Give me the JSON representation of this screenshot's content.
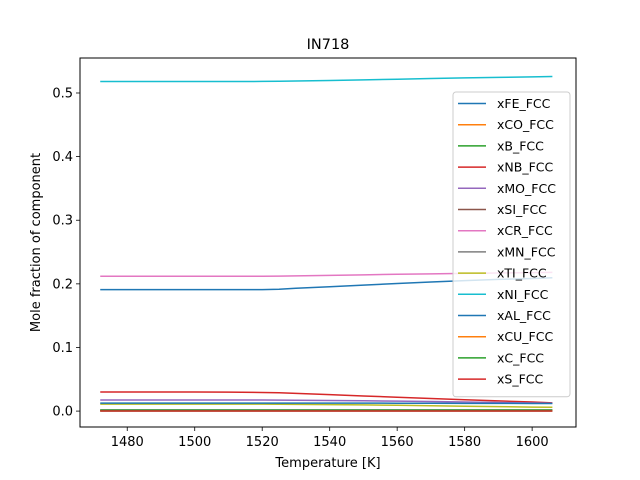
{
  "chart_data": {
    "type": "line",
    "title": "IN718",
    "xlabel": "Temperature [K]",
    "ylabel": "Mole fraction of component",
    "xlim": [
      1466,
      1613
    ],
    "ylim": [
      -0.025,
      0.555
    ],
    "xticks": [
      1480,
      1500,
      1520,
      1540,
      1560,
      1580,
      1600
    ],
    "yticks": [
      0.0,
      0.1,
      0.2,
      0.3,
      0.4,
      0.5
    ],
    "grid": false,
    "legend_position": "right",
    "x": [
      1472,
      1480,
      1490,
      1500,
      1510,
      1520,
      1525,
      1530,
      1540,
      1550,
      1560,
      1570,
      1580,
      1590,
      1600,
      1606
    ],
    "series": [
      {
        "name": "xFE_FCC",
        "color": "#1f77b4",
        "values": [
          0.191,
          0.191,
          0.191,
          0.191,
          0.191,
          0.191,
          0.1915,
          0.193,
          0.1955,
          0.198,
          0.2005,
          0.203,
          0.205,
          0.207,
          0.2085,
          0.2095
        ]
      },
      {
        "name": "xCO_FCC",
        "color": "#ff7f0e",
        "values": [
          0.001,
          0.001,
          0.001,
          0.001,
          0.001,
          0.001,
          0.001,
          0.001,
          0.001,
          0.001,
          0.001,
          0.001,
          0.001,
          0.001,
          0.001,
          0.001
        ]
      },
      {
        "name": "xB_FCC",
        "color": "#2ca02c",
        "values": [
          0.0002,
          0.0002,
          0.0002,
          0.0002,
          0.0002,
          0.0002,
          0.0002,
          0.0002,
          0.0002,
          0.0002,
          0.0002,
          0.0002,
          0.0002,
          0.0002,
          0.0002,
          0.0002
        ]
      },
      {
        "name": "xNB_FCC",
        "color": "#d62728",
        "values": [
          0.03,
          0.03,
          0.03,
          0.03,
          0.0298,
          0.0293,
          0.0288,
          0.0278,
          0.0258,
          0.0238,
          0.0218,
          0.0198,
          0.0178,
          0.016,
          0.0142,
          0.013
        ]
      },
      {
        "name": "xMO_FCC",
        "color": "#9467bd",
        "values": [
          0.0175,
          0.0175,
          0.0175,
          0.0175,
          0.0175,
          0.0174,
          0.0173,
          0.0171,
          0.0167,
          0.0162,
          0.0156,
          0.015,
          0.0143,
          0.0136,
          0.0128,
          0.0123
        ]
      },
      {
        "name": "xSI_FCC",
        "color": "#8c564b",
        "values": [
          0.001,
          0.001,
          0.001,
          0.001,
          0.001,
          0.001,
          0.001,
          0.001,
          0.001,
          0.001,
          0.001,
          0.001,
          0.001,
          0.001,
          0.001,
          0.001
        ]
      },
      {
        "name": "xCR_FCC",
        "color": "#e377c2",
        "values": [
          0.212,
          0.212,
          0.212,
          0.212,
          0.212,
          0.212,
          0.2122,
          0.2126,
          0.2134,
          0.2142,
          0.215,
          0.2157,
          0.2164,
          0.217,
          0.2176,
          0.218
        ]
      },
      {
        "name": "xMN_FCC",
        "color": "#7f7f7f",
        "values": [
          0.002,
          0.002,
          0.002,
          0.002,
          0.002,
          0.002,
          0.002,
          0.002,
          0.002,
          0.002,
          0.002,
          0.002,
          0.002,
          0.002,
          0.002,
          0.002
        ]
      },
      {
        "name": "xTI_FCC",
        "color": "#bcbd22",
        "values": [
          0.011,
          0.011,
          0.011,
          0.011,
          0.011,
          0.0109,
          0.0108,
          0.0106,
          0.0102,
          0.0097,
          0.0091,
          0.0084,
          0.0077,
          0.007,
          0.0063,
          0.006
        ]
      },
      {
        "name": "xNI_FCC",
        "color": "#17becf",
        "values": [
          0.518,
          0.518,
          0.518,
          0.518,
          0.518,
          0.5182,
          0.5184,
          0.5188,
          0.5196,
          0.5206,
          0.5217,
          0.5228,
          0.5237,
          0.5245,
          0.5253,
          0.526
        ]
      },
      {
        "name": "xAL_FCC",
        "color": "#1f77b4",
        "values": [
          0.0125,
          0.0125,
          0.0125,
          0.0125,
          0.0125,
          0.0125,
          0.0125,
          0.0125,
          0.0125,
          0.0125,
          0.0124,
          0.0123,
          0.0122,
          0.0121,
          0.012,
          0.0119
        ]
      },
      {
        "name": "xCU_FCC",
        "color": "#ff7f0e",
        "values": [
          0.0005,
          0.0005,
          0.0005,
          0.0005,
          0.0005,
          0.0005,
          0.0005,
          0.0005,
          0.0005,
          0.0005,
          0.0005,
          0.0005,
          0.0005,
          0.0005,
          0.0005,
          0.0005
        ]
      },
      {
        "name": "xC_FCC",
        "color": "#2ca02c",
        "values": [
          0.0015,
          0.0015,
          0.0015,
          0.0015,
          0.0015,
          0.0015,
          0.0015,
          0.0015,
          0.0015,
          0.0015,
          0.0015,
          0.0015,
          0.0015,
          0.0015,
          0.0015,
          0.0015
        ]
      },
      {
        "name": "xS_FCC",
        "color": "#d62728",
        "values": [
          0.0001,
          0.0001,
          0.0001,
          0.0001,
          0.0001,
          0.0001,
          0.0001,
          0.0001,
          0.0001,
          0.0001,
          0.0001,
          0.0001,
          0.0001,
          0.0001,
          0.0001,
          0.0001
        ]
      }
    ]
  }
}
